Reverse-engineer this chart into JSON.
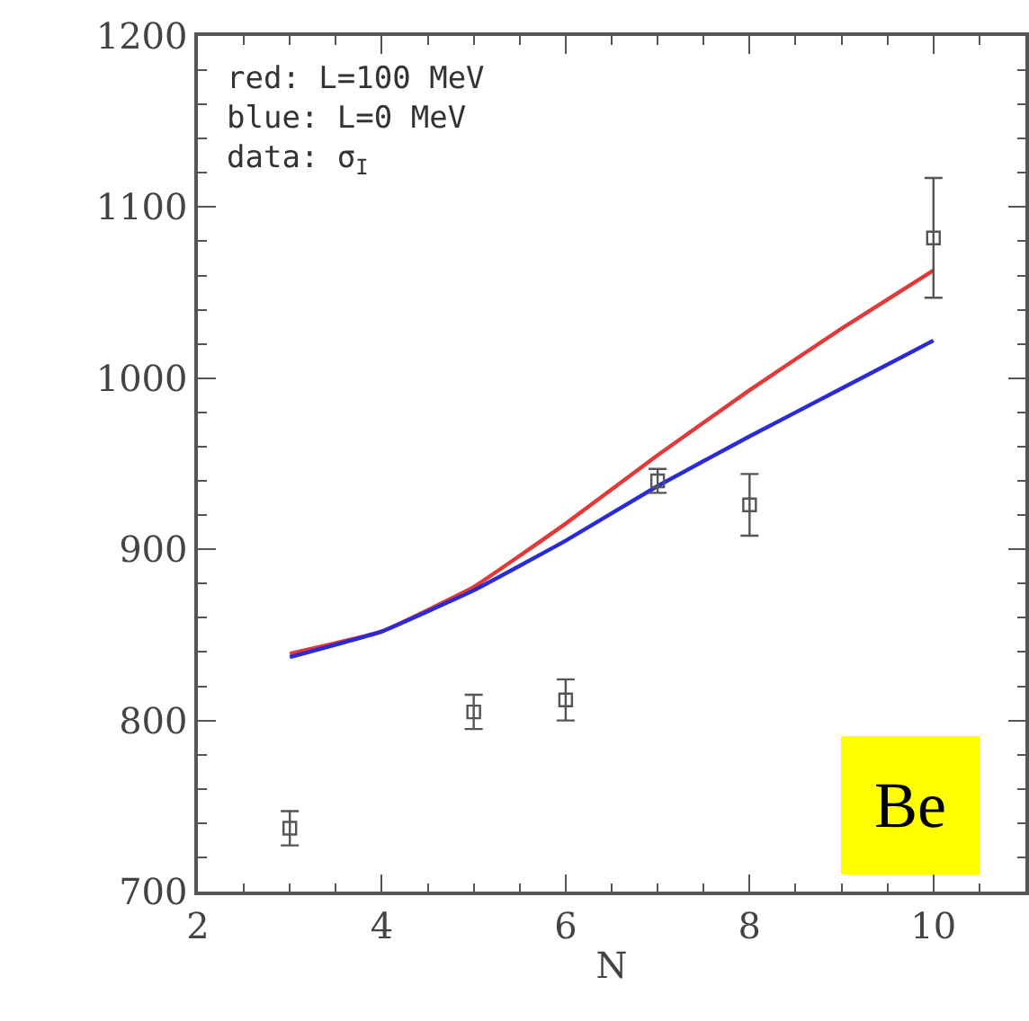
{
  "chart_data": {
    "type": "line",
    "xlabel": "N",
    "x": [
      3,
      4,
      5,
      6,
      7,
      8,
      9,
      10
    ],
    "series": [
      {
        "color": "#e03a3a",
        "values": [
          839,
          852,
          878,
          915,
          955,
          993,
          1029,
          1063
        ]
      },
      {
        "color": "#2b2bd6",
        "values": [
          837,
          852,
          876,
          905,
          937,
          966,
          994,
          1022
        ]
      },
      {
        "type": "scatter",
        "color": "#555555",
        "marker": "square",
        "x": [
          3,
          5,
          6,
          7,
          8,
          10
        ],
        "values": [
          737,
          805,
          812,
          940,
          926,
          1082
        ],
        "errors": [
          10,
          10,
          12,
          7,
          18,
          35
        ]
      }
    ],
    "xlim": [
      2,
      11
    ],
    "xticks": [
      2,
      4,
      6,
      8,
      10
    ],
    "ylim": [
      700,
      1200
    ],
    "yticks": [
      700,
      800,
      900,
      1000,
      1100,
      1200
    ],
    "annotations": [
      "red: L=100 MeV\nblue: L=0 MeV\ndata: σ$_{I}$",
      "Be"
    ]
  }
}
